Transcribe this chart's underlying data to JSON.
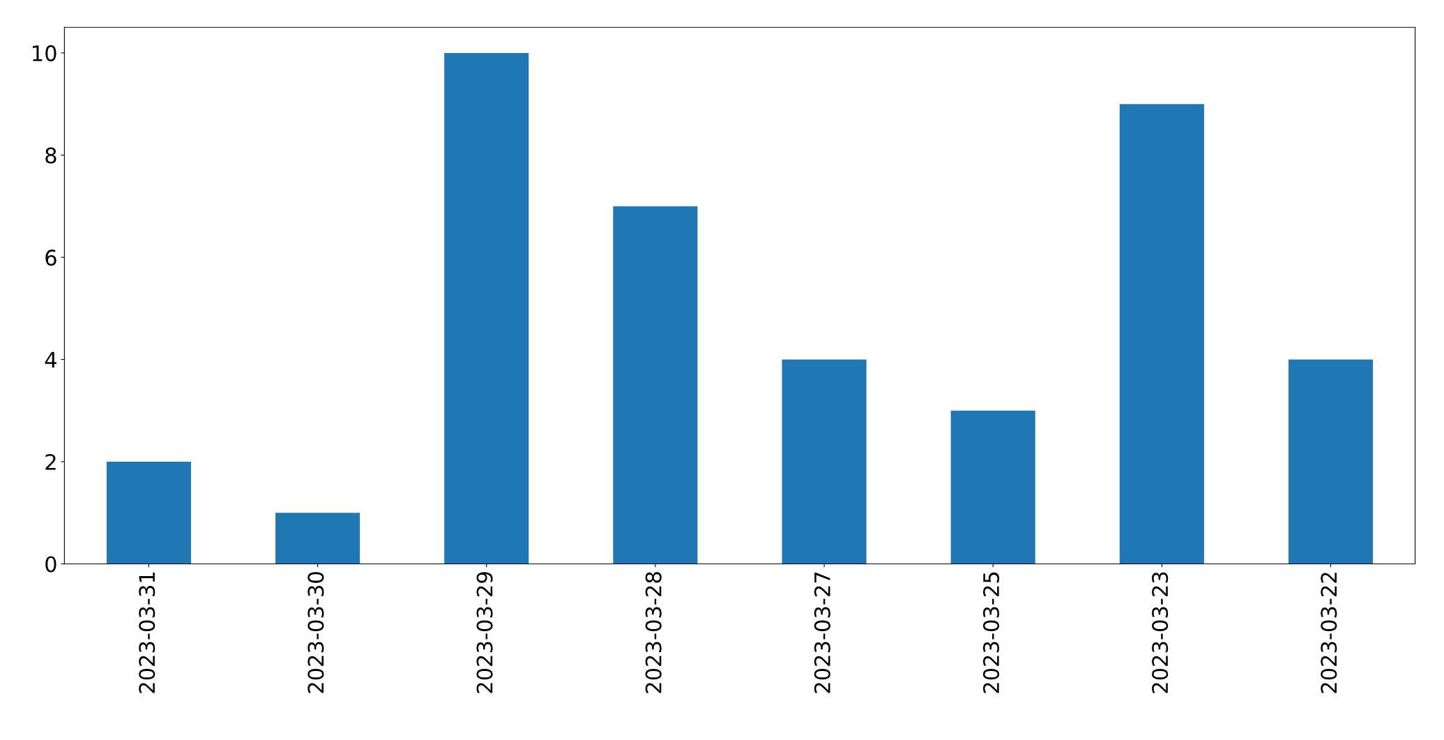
{
  "chart_data": {
    "type": "bar",
    "categories": [
      "2023-03-31",
      "2023-03-30",
      "2023-03-29",
      "2023-03-28",
      "2023-03-27",
      "2023-03-25",
      "2023-03-23",
      "2023-03-22"
    ],
    "values": [
      2,
      1,
      10,
      7,
      4,
      3,
      9,
      4
    ],
    "color": "#1f77b4",
    "ylim": [
      0,
      10.5
    ],
    "yticks": [
      0,
      2,
      4,
      6,
      8,
      10
    ],
    "grid": false,
    "legend": false
  }
}
